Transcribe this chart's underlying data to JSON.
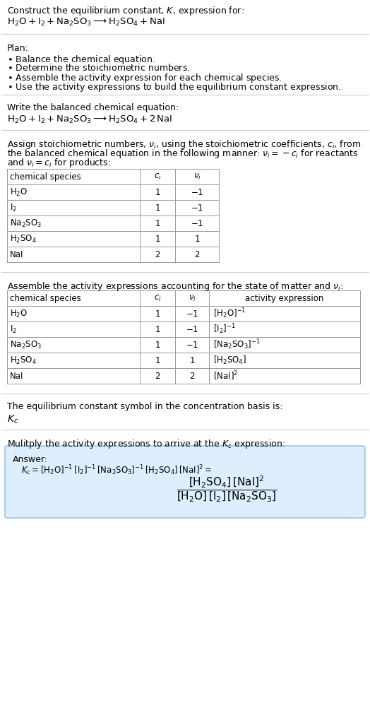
{
  "title_line1": "Construct the equilibrium constant, $K$, expression for:",
  "reaction_unbalanced": "$\\mathrm{H_2O + I_2 + Na_2SO_3 \\longrightarrow H_2SO_4 + NaI}$",
  "plan_header": "Plan:",
  "plan_items": [
    "$\\bullet$ Balance the chemical equation.",
    "$\\bullet$ Determine the stoichiometric numbers.",
    "$\\bullet$ Assemble the activity expression for each chemical species.",
    "$\\bullet$ Use the activity expressions to build the equilibrium constant expression."
  ],
  "balanced_header": "Write the balanced chemical equation:",
  "reaction_balanced": "$\\mathrm{H_2O + I_2 + Na_2SO_3 \\longrightarrow H_2SO_4 + 2\\,NaI}$",
  "stoich_header_lines": [
    "Assign stoichiometric numbers, $\\nu_i$, using the stoichiometric coefficients, $c_i$, from",
    "the balanced chemical equation in the following manner: $\\nu_i = -c_i$ for reactants",
    "and $\\nu_i = c_i$ for products:"
  ],
  "table1_headers": [
    "chemical species",
    "$c_i$",
    "$\\nu_i$"
  ],
  "table1_rows": [
    [
      "$\\mathrm{H_2O}$",
      "1",
      "$-1$"
    ],
    [
      "$\\mathrm{I_2}$",
      "1",
      "$-1$"
    ],
    [
      "$\\mathrm{Na_2SO_3}$",
      "1",
      "$-1$"
    ],
    [
      "$\\mathrm{H_2SO_4}$",
      "1",
      "1"
    ],
    [
      "NaI",
      "2",
      "2"
    ]
  ],
  "activity_header": "Assemble the activity expressions accounting for the state of matter and $\\nu_i$:",
  "table2_headers": [
    "chemical species",
    "$c_i$",
    "$\\nu_i$",
    "activity expression"
  ],
  "table2_rows": [
    [
      "$\\mathrm{H_2O}$",
      "1",
      "$-1$",
      "$[\\mathrm{H_2O}]^{-1}$"
    ],
    [
      "$\\mathrm{I_2}$",
      "1",
      "$-1$",
      "$[\\mathrm{I_2}]^{-1}$"
    ],
    [
      "$\\mathrm{Na_2SO_3}$",
      "1",
      "$-1$",
      "$[\\mathrm{Na_2SO_3}]^{-1}$"
    ],
    [
      "$\\mathrm{H_2SO_4}$",
      "1",
      "1",
      "$[\\mathrm{H_2SO_4}]$"
    ],
    [
      "NaI",
      "2",
      "2",
      "$[\\mathrm{NaI}]^2$"
    ]
  ],
  "kc_header": "The equilibrium constant symbol in the concentration basis is:",
  "kc_symbol": "$K_c$",
  "multiply_header": "Mulitply the activity expressions to arrive at the $K_c$ expression:",
  "answer_label": "Answer:",
  "answer_line1": "$K_c = [\\mathrm{H_2O}]^{-1}\\,[\\mathrm{I_2}]^{-1}\\,[\\mathrm{Na_2SO_3}]^{-1}\\,[\\mathrm{H_2SO_4}]\\,[\\mathrm{NaI}]^2 = $",
  "answer_frac": "$\\dfrac{[\\mathrm{H_2SO_4}]\\,[\\mathrm{NaI}]^2}{[\\mathrm{H_2O}]\\,[\\mathrm{I_2}]\\,[\\mathrm{Na_2SO_3}]}$",
  "bg_color": "#ffffff",
  "table_border_color": "#999999",
  "answer_box_bg": "#ddeeff",
  "answer_box_border": "#99bbdd",
  "text_color": "#000000",
  "font_size": 9.0,
  "sep_color": "#cccccc"
}
